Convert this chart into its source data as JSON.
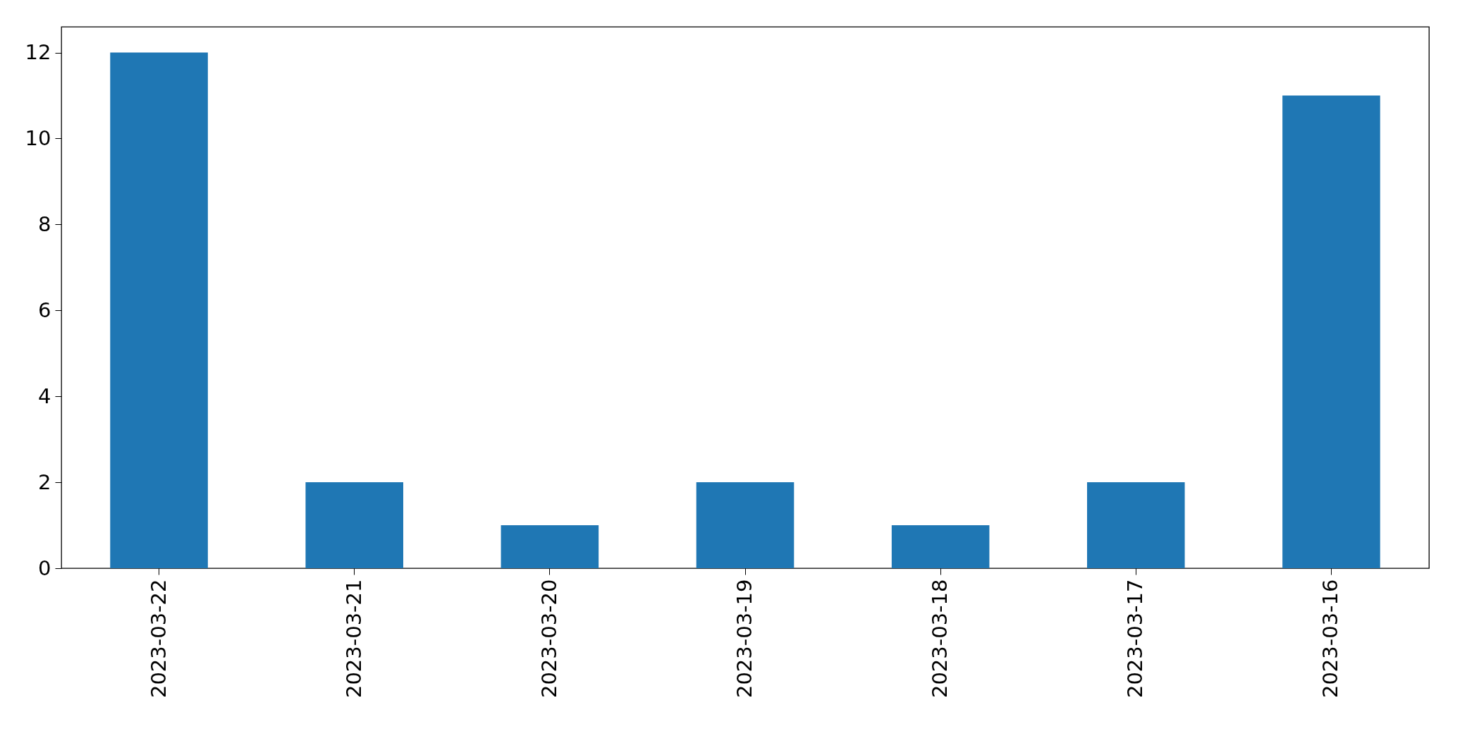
{
  "chart_data": {
    "type": "bar",
    "categories": [
      "2023-03-22",
      "2023-03-21",
      "2023-03-20",
      "2023-03-19",
      "2023-03-18",
      "2023-03-17",
      "2023-03-16"
    ],
    "values": [
      12,
      2,
      1,
      2,
      1,
      2,
      11
    ],
    "color": "#1f77b4",
    "ylim": [
      0,
      12.6
    ],
    "yticks": [
      0,
      2,
      4,
      6,
      8,
      10,
      12
    ],
    "grid": false
  }
}
